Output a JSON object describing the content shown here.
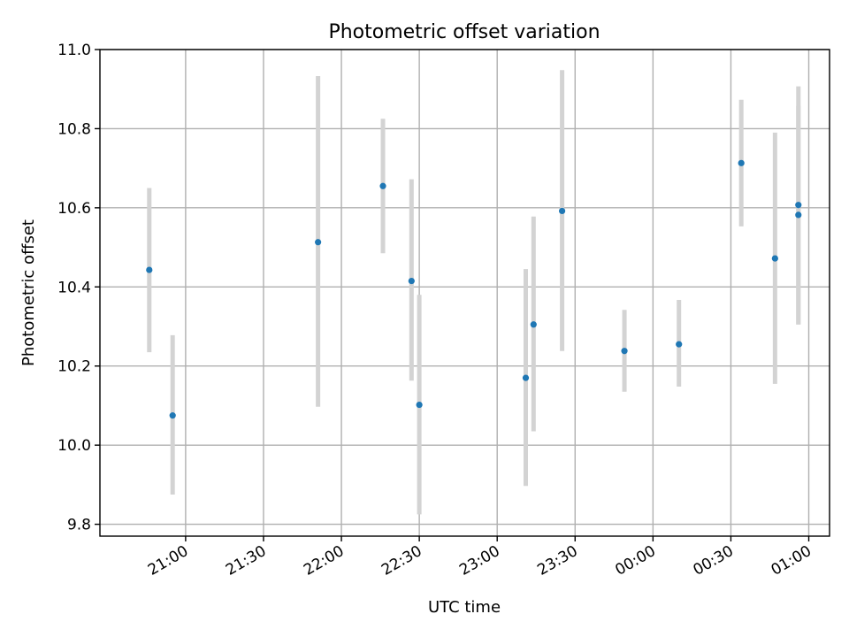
{
  "chart_data": {
    "type": "scatter",
    "title": "Photometric offset variation",
    "xlabel": "UTC time",
    "ylabel": "Photometric offset",
    "ylim": [
      9.77,
      11.0
    ],
    "xlim": [
      "20:27",
      "01:08"
    ],
    "grid": true,
    "x_ticks": [
      "21:00",
      "21:30",
      "22:00",
      "22:30",
      "23:00",
      "23:30",
      "00:00",
      "00:30",
      "01:00"
    ],
    "y_ticks": [
      "9.8",
      "10.0",
      "10.2",
      "10.4",
      "10.6",
      "10.8",
      "11.0"
    ],
    "point_color": "#1f77b4",
    "errorbar_color": "#d3d3d3",
    "points": [
      {
        "x": "20:46",
        "y": 10.443,
        "ylow": 10.235,
        "yhigh": 10.65
      },
      {
        "x": "20:55",
        "y": 10.075,
        "ylow": 9.875,
        "yhigh": 10.278
      },
      {
        "x": "21:51",
        "y": 10.513,
        "ylow": 10.097,
        "yhigh": 10.933
      },
      {
        "x": "22:16",
        "y": 10.655,
        "ylow": 10.485,
        "yhigh": 10.825
      },
      {
        "x": "22:27",
        "y": 10.415,
        "ylow": 10.163,
        "yhigh": 10.672
      },
      {
        "x": "22:30",
        "y": 10.102,
        "ylow": 9.825,
        "yhigh": 10.38
      },
      {
        "x": "23:11",
        "y": 10.17,
        "ylow": 9.897,
        "yhigh": 10.445
      },
      {
        "x": "23:14",
        "y": 10.305,
        "ylow": 10.035,
        "yhigh": 10.578
      },
      {
        "x": "23:25",
        "y": 10.592,
        "ylow": 10.238,
        "yhigh": 10.948
      },
      {
        "x": "23:49",
        "y": 10.238,
        "ylow": 10.135,
        "yhigh": 10.342
      },
      {
        "x": "00:10",
        "y": 10.255,
        "ylow": 10.148,
        "yhigh": 10.367
      },
      {
        "x": "00:34",
        "y": 10.713,
        "ylow": 10.553,
        "yhigh": 10.873
      },
      {
        "x": "00:47",
        "y": 10.472,
        "ylow": 10.155,
        "yhigh": 10.79
      },
      {
        "x": "00:56",
        "y": 10.607,
        "ylow": 10.305,
        "yhigh": 10.907
      },
      {
        "x": "00:56",
        "y": 10.582,
        "ylow": 10.305,
        "yhigh": 10.858
      }
    ]
  }
}
